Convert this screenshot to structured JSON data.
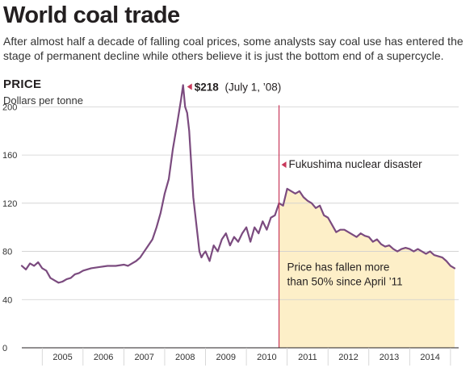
{
  "header": {
    "title": "World coal trade",
    "subtitle_line1": "After almost half a decade of falling coal prices, some analysts say coal use has entered the",
    "subtitle_line2": "stage of permanent decline while others believe it is just the bottom end of a supercycle."
  },
  "section_label": "PRICE",
  "unit_label": "Dollars per tonne",
  "colors": {
    "line": "#7b4b7f",
    "event_line": "#c8385a",
    "shade": "#fdefc8",
    "grid": "#cfcfcf"
  },
  "chart_data": {
    "type": "line",
    "title": "PRICE",
    "ylabel": "Dollars per tonne",
    "ylim": [
      0,
      215
    ],
    "xlim": [
      2004.5,
      2015.2
    ],
    "yticks": [
      0,
      40,
      80,
      120,
      160,
      200
    ],
    "x_tick_labels": [
      "2005",
      "2006",
      "2007",
      "2008",
      "2009",
      "2010",
      "2011",
      "2012",
      "2013",
      "2014"
    ],
    "grid": true,
    "series": [
      {
        "x": [
          2004.5,
          2004.6,
          2004.7,
          2004.8,
          2004.9,
          2005.0,
          2005.1,
          2005.2,
          2005.3,
          2005.4,
          2005.5,
          2005.6,
          2005.7,
          2005.8,
          2005.9,
          2006.0,
          2006.2,
          2006.4,
          2006.6,
          2006.8,
          2007.0,
          2007.1,
          2007.2,
          2007.3,
          2007.4,
          2007.5,
          2007.6,
          2007.7,
          2007.8,
          2007.9,
          2008.0,
          2008.1,
          2008.2,
          2008.3,
          2008.4,
          2008.45,
          2008.5,
          2008.55,
          2008.6,
          2008.7,
          2008.8,
          2008.85,
          2008.9,
          2008.95,
          2009.0,
          2009.1,
          2009.2,
          2009.3,
          2009.4,
          2009.5,
          2009.6,
          2009.7,
          2009.8,
          2009.9,
          2010.0,
          2010.1,
          2010.2,
          2010.3,
          2010.4,
          2010.5,
          2010.6,
          2010.7,
          2010.8,
          2010.9,
          2011.0,
          2011.1,
          2011.2,
          2011.3,
          2011.4,
          2011.5,
          2011.6,
          2011.7,
          2011.8,
          2011.9,
          2012.0,
          2012.1,
          2012.2,
          2012.3,
          2012.4,
          2012.5,
          2012.6,
          2012.7,
          2012.8,
          2012.9,
          2013.0,
          2013.1,
          2013.2,
          2013.3,
          2013.4,
          2013.5,
          2013.6,
          2013.7,
          2013.8,
          2013.9,
          2014.0,
          2014.1,
          2014.2,
          2014.3,
          2014.4,
          2014.5,
          2014.6,
          2014.7,
          2014.8,
          2014.9,
          2015.0,
          2015.1
        ],
        "values": [
          68,
          65,
          70,
          68,
          71,
          66,
          64,
          58,
          56,
          54,
          55,
          57,
          58,
          61,
          62,
          64,
          66,
          67,
          68,
          68,
          69,
          68,
          70,
          72,
          75,
          80,
          85,
          90,
          100,
          112,
          128,
          140,
          165,
          185,
          206,
          218,
          200,
          195,
          180,
          125,
          95,
          80,
          75,
          78,
          80,
          72,
          85,
          80,
          90,
          95,
          85,
          92,
          88,
          95,
          100,
          88,
          100,
          95,
          105,
          98,
          108,
          110,
          120,
          118,
          132,
          130,
          128,
          130,
          125,
          122,
          120,
          116,
          118,
          110,
          108,
          102,
          96,
          98,
          98,
          96,
          94,
          92,
          95,
          93,
          92,
          88,
          90,
          86,
          84,
          85,
          82,
          80,
          82,
          83,
          82,
          80,
          82,
          80,
          78,
          80,
          77,
          76,
          75,
          72,
          68,
          66
        ]
      }
    ],
    "event_x": 2010.8,
    "annotations": {
      "peak_value": "$218",
      "peak_date": "(July 1, ’08)",
      "peak_x": 2008.45,
      "peak_y": 218,
      "event": "Fukushima nuclear disaster",
      "note_line1": "Price has fallen more",
      "note_line2": "than 50% since April ’11"
    }
  }
}
